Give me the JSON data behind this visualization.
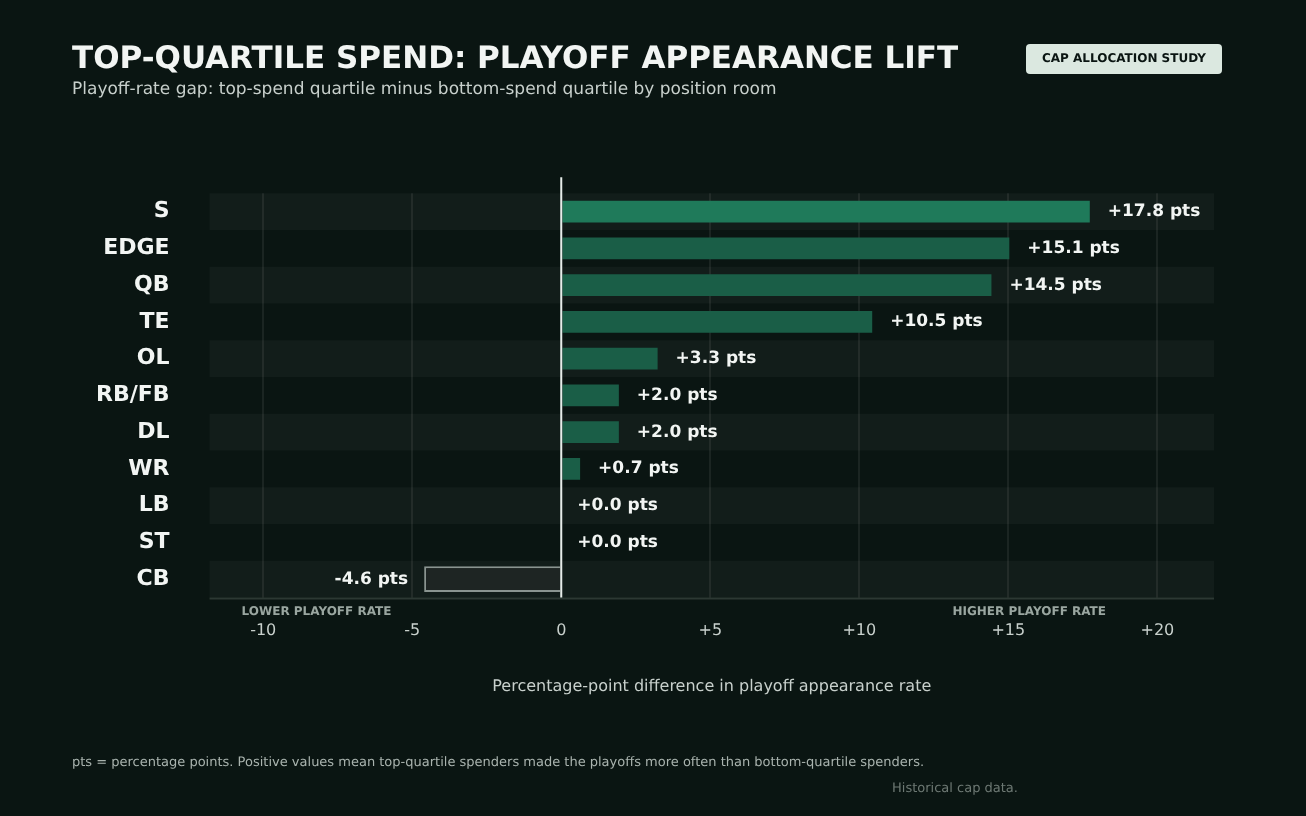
{
  "chart_data": {
    "type": "bar",
    "orientation": "horizontal",
    "title": "TOP-QUARTILE SPEND: PLAYOFF APPEARANCE LIFT",
    "subtitle": "Playoff-rate gap: top-spend quartile minus bottom-spend quartile by position room",
    "xlabel": "Percentage-point difference in playoff appearance rate",
    "categories": [
      "S",
      "EDGE",
      "QB",
      "TE",
      "OL",
      "RB/FB",
      "DL",
      "WR",
      "LB",
      "ST",
      "CB"
    ],
    "values": [
      17.8,
      15.1,
      14.5,
      10.5,
      3.3,
      2.0,
      2.0,
      0.7,
      0.0,
      0.0,
      -4.6
    ],
    "value_labels": [
      "+17.8 pts",
      "+15.1 pts",
      "+14.5 pts",
      "+10.5 pts",
      "+3.3 pts",
      "+2.0 pts",
      "+2.0 pts",
      "+0.7 pts",
      "+0.0 pts",
      "+0.0 pts",
      "-4.6 pts"
    ],
    "colors": [
      "#1f7a5a",
      "#1a5e47",
      "#1a5e47",
      "#1a5e47",
      "#1a5e47",
      "#1a5e47",
      "#1a5e47",
      "#1a5e47",
      "#1a5e47",
      "#1a5e47",
      "#1e2523"
    ],
    "xlim": [
      -11.8,
      21.9
    ],
    "xticks": [
      -10,
      -5,
      0,
      {
        "value": 5,
        "label": "+5"
      },
      {
        "value": 10,
        "label": "+10"
      },
      {
        "value": 15,
        "label": "+15"
      },
      {
        "value": 20,
        "label": "+20"
      }
    ],
    "grid": "x",
    "legend": false,
    "annotations": [
      "CAP ALLOCATION STUDY",
      "LOWER PLAYOFF RATE",
      "HIGHER PLAYOFF RATE",
      "pts = percentage points. Positive values mean top-quartile spenders made the playoffs more often than bottom-quartile spenders.",
      "Historical cap data."
    ]
  }
}
